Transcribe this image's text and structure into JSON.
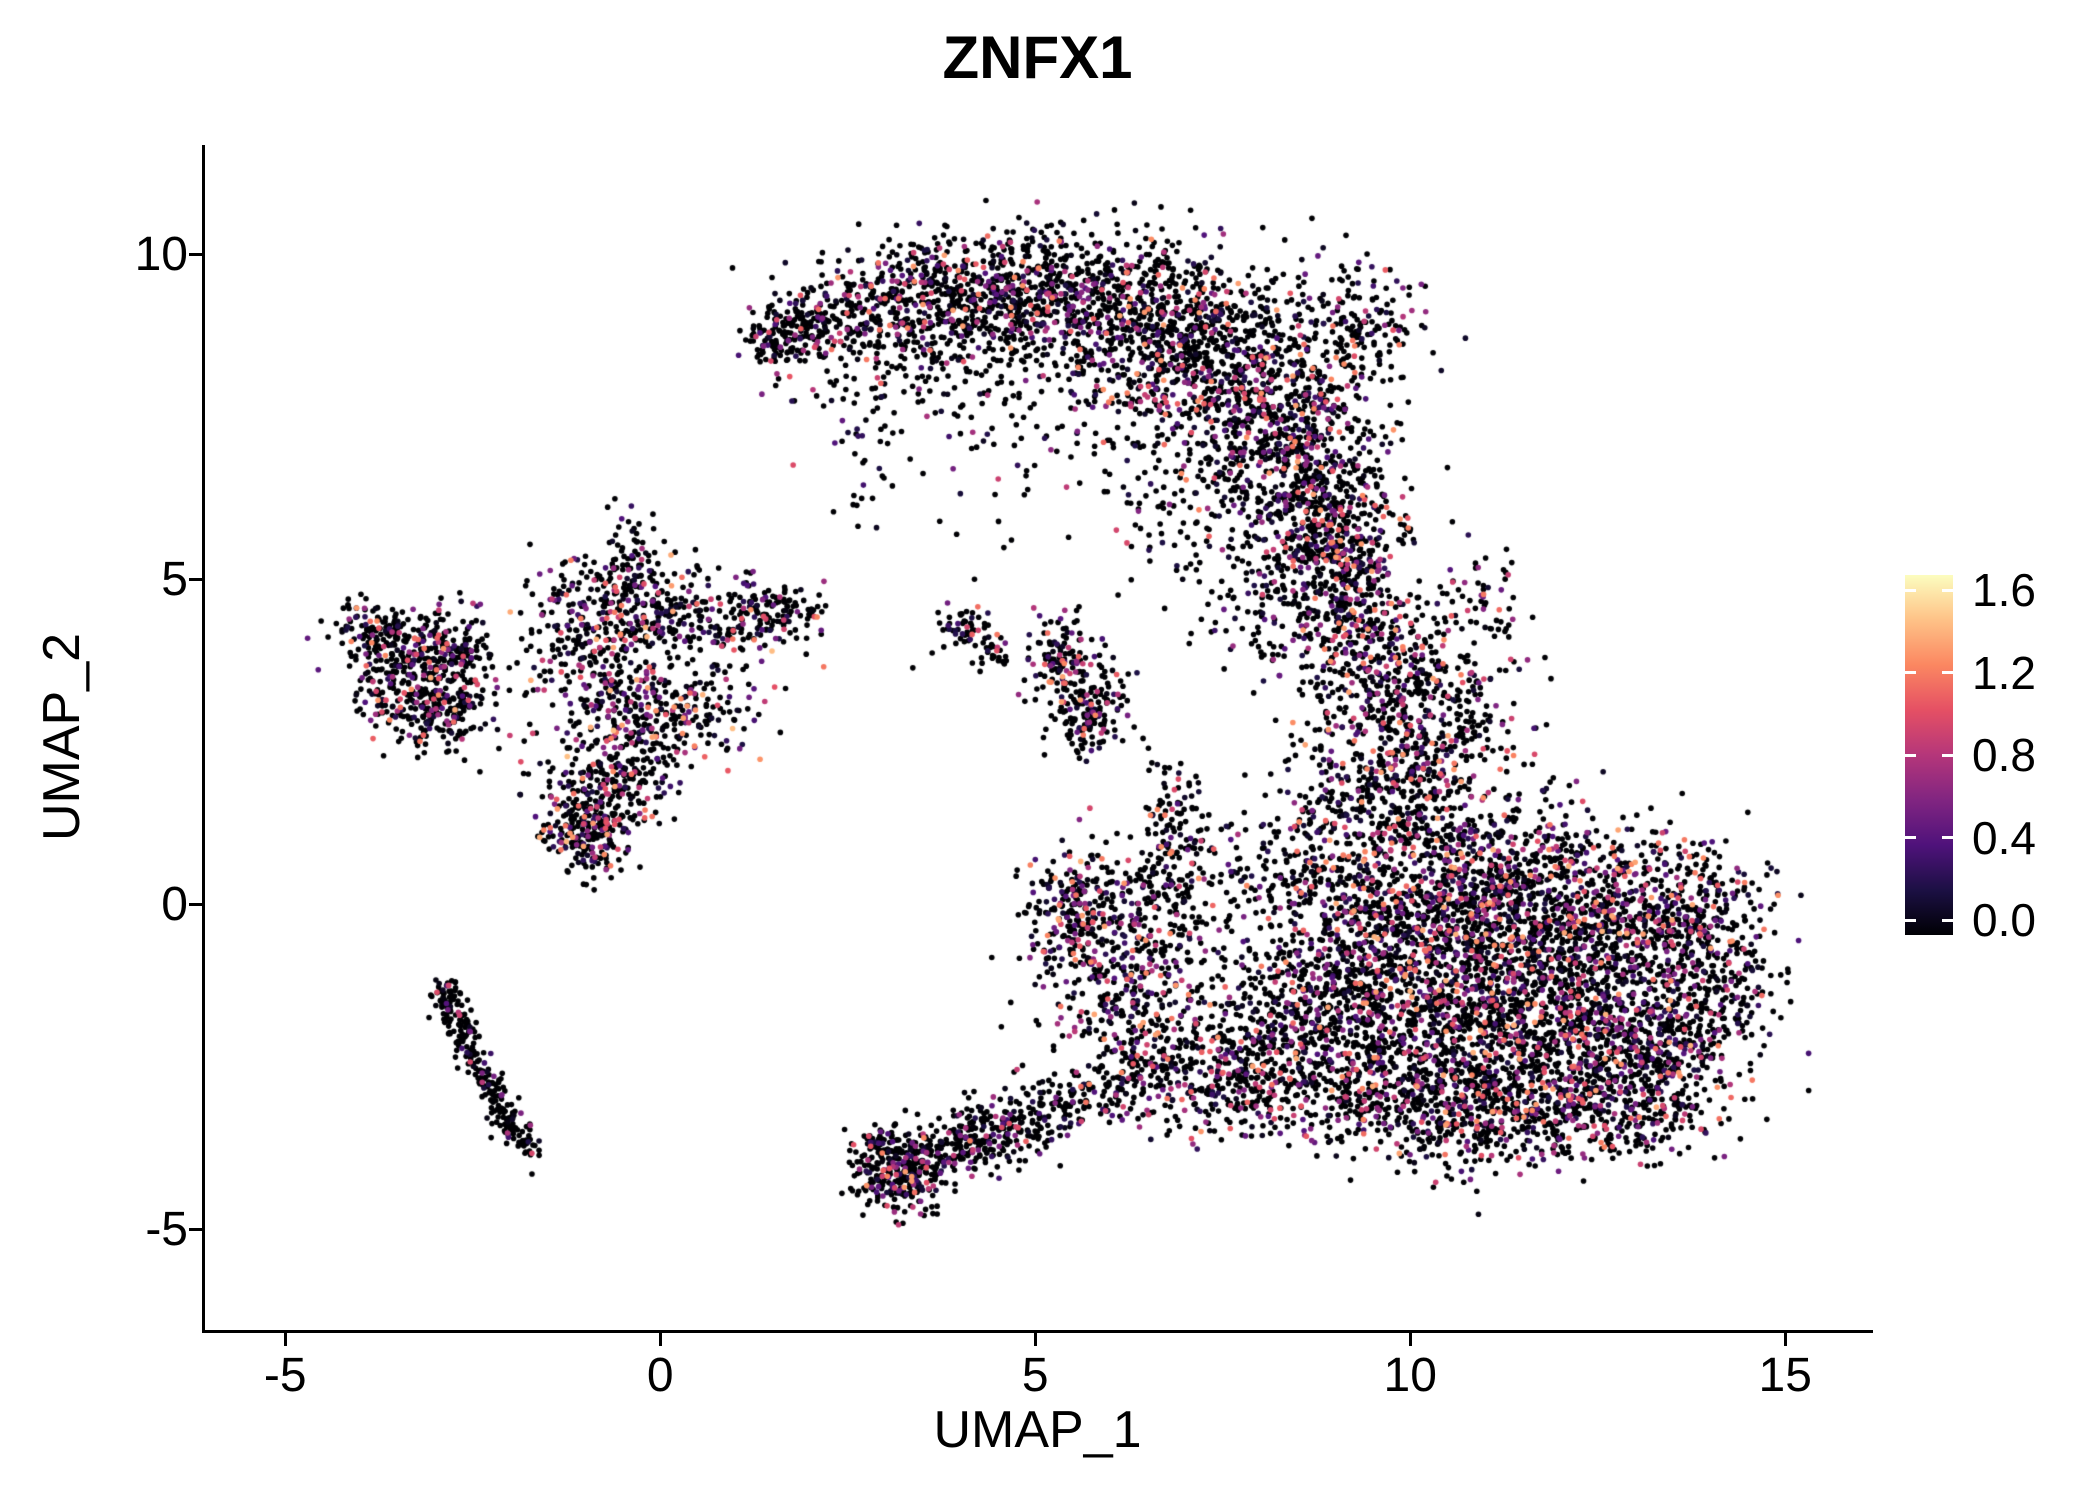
{
  "chart_data": {
    "type": "scatter",
    "title": "ZNFX1",
    "xlabel": "UMAP_1",
    "ylabel": "UMAP_2",
    "xlim": [
      -6.07,
      16.13
    ],
    "ylim": [
      -6.54,
      11.69
    ],
    "x_ticks": [
      -5,
      0,
      5,
      10,
      15
    ],
    "y_ticks": [
      -5,
      0,
      5,
      10
    ],
    "grid": false,
    "legend": {
      "position": "right",
      "ticks": [
        "0.0",
        "0.4",
        "0.8",
        "1.2",
        "1.6"
      ],
      "tick_values": [
        0,
        0.4,
        0.8,
        1.2,
        1.6
      ],
      "vmin": 0,
      "vmax": 1.6,
      "colormap": "magma",
      "stops": [
        "#000004",
        "#1c1044",
        "#4f127b",
        "#812581",
        "#b5367a",
        "#e55064",
        "#fb8761",
        "#fec287",
        "#fcfdbf"
      ]
    },
    "clusters": [
      {
        "t": "g",
        "x": 1.6,
        "y": 8.75,
        "sx": 0.25,
        "sy": 0.25,
        "n": 110,
        "cf": 0.3,
        "vm": 1.2
      },
      {
        "t": "g",
        "x": 2.3,
        "y": 9.0,
        "sx": 0.45,
        "sy": 0.4,
        "n": 190,
        "cf": 0.3,
        "vm": 1.2
      },
      {
        "t": "g",
        "x": 3.3,
        "y": 9.35,
        "sx": 0.55,
        "sy": 0.45,
        "n": 260,
        "cf": 0.32,
        "vm": 1.3
      },
      {
        "t": "g",
        "x": 4.3,
        "y": 9.5,
        "sx": 0.55,
        "sy": 0.45,
        "n": 280,
        "cf": 0.32,
        "vm": 1.3
      },
      {
        "t": "g",
        "x": 5.3,
        "y": 9.4,
        "sx": 0.6,
        "sy": 0.55,
        "n": 330,
        "cf": 0.32,
        "vm": 1.3
      },
      {
        "t": "g",
        "x": 6.3,
        "y": 9.1,
        "sx": 0.7,
        "sy": 0.6,
        "n": 400,
        "cf": 0.33,
        "vm": 1.3
      },
      {
        "t": "g",
        "x": 7.2,
        "y": 8.6,
        "sx": 0.7,
        "sy": 0.7,
        "n": 470,
        "cf": 0.33,
        "vm": 1.3
      },
      {
        "t": "g",
        "x": 8.0,
        "y": 7.8,
        "sx": 0.65,
        "sy": 0.75,
        "n": 470,
        "cf": 0.33,
        "vm": 1.3
      },
      {
        "t": "g",
        "x": 8.6,
        "y": 6.8,
        "sx": 0.55,
        "sy": 0.7,
        "n": 380,
        "cf": 0.33,
        "vm": 1.3
      },
      {
        "t": "g",
        "x": 8.9,
        "y": 5.9,
        "sx": 0.45,
        "sy": 0.55,
        "n": 230,
        "cf": 0.3,
        "vm": 1.3
      },
      {
        "t": "g",
        "x": 9.35,
        "y": 8.9,
        "sx": 0.45,
        "sy": 0.55,
        "n": 170,
        "cf": 0.3,
        "vm": 1.2
      },
      {
        "t": "g",
        "x": 5.8,
        "y": 7.9,
        "sx": 1.3,
        "sy": 0.7,
        "n": 120,
        "cf": 0.25,
        "vm": 1.2
      },
      {
        "t": "g",
        "x": 3.7,
        "y": 8.4,
        "sx": 0.8,
        "sy": 0.5,
        "n": 110,
        "cf": 0.25,
        "vm": 1.2
      },
      {
        "t": "g",
        "x": 2.6,
        "y": 7.9,
        "sx": 0.5,
        "sy": 0.5,
        "n": 55,
        "cf": 0.25,
        "vm": 1.2
      },
      {
        "t": "g",
        "x": 4.6,
        "y": 6.9,
        "sx": 0.9,
        "sy": 0.6,
        "n": 45,
        "cf": 0.2,
        "vm": 1.0
      },
      {
        "t": "g",
        "x": 7.0,
        "y": 6.3,
        "sx": 0.7,
        "sy": 0.6,
        "n": 85,
        "cf": 0.3,
        "vm": 1.2
      },
      {
        "t": "g",
        "x": 8.2,
        "y": 5.0,
        "sx": 0.4,
        "sy": 0.5,
        "n": 55,
        "cf": 0.3,
        "vm": 1.2
      },
      {
        "t": "g",
        "x": -3.8,
        "y": 4.25,
        "sx": 0.3,
        "sy": 0.25,
        "n": 110,
        "cf": 0.35,
        "vm": 1.35
      },
      {
        "t": "g",
        "x": -3.2,
        "y": 3.9,
        "sx": 0.4,
        "sy": 0.3,
        "n": 160,
        "cf": 0.35,
        "vm": 1.35
      },
      {
        "t": "g",
        "x": -3.4,
        "y": 3.2,
        "sx": 0.35,
        "sy": 0.35,
        "n": 170,
        "cf": 0.35,
        "vm": 1.35
      },
      {
        "t": "g",
        "x": -2.8,
        "y": 3.0,
        "sx": 0.3,
        "sy": 0.35,
        "n": 140,
        "cf": 0.35,
        "vm": 1.35
      },
      {
        "t": "g",
        "x": -2.6,
        "y": 3.9,
        "sx": 0.25,
        "sy": 0.3,
        "n": 80,
        "cf": 0.3,
        "vm": 1.2
      },
      {
        "t": "g",
        "x": -0.9,
        "y": 4.6,
        "sx": 0.5,
        "sy": 0.4,
        "n": 150,
        "cf": 0.35,
        "vm": 1.4
      },
      {
        "t": "g",
        "x": 0.1,
        "y": 4.5,
        "sx": 0.6,
        "sy": 0.4,
        "n": 180,
        "cf": 0.35,
        "vm": 1.4
      },
      {
        "t": "g",
        "x": 1.1,
        "y": 4.4,
        "sx": 0.5,
        "sy": 0.3,
        "n": 130,
        "cf": 0.35,
        "vm": 1.4
      },
      {
        "t": "g",
        "x": -0.4,
        "y": 5.3,
        "sx": 0.2,
        "sy": 0.45,
        "n": 70,
        "cf": 0.3,
        "vm": 1.2
      },
      {
        "t": "g",
        "x": -0.7,
        "y": 3.6,
        "sx": 0.5,
        "sy": 0.4,
        "n": 160,
        "cf": 0.35,
        "vm": 1.4
      },
      {
        "t": "g",
        "x": 0.4,
        "y": 3.0,
        "sx": 0.5,
        "sy": 0.4,
        "n": 150,
        "cf": 0.38,
        "vm": 1.4
      },
      {
        "t": "g",
        "x": -0.3,
        "y": 2.6,
        "sx": 0.4,
        "sy": 0.4,
        "n": 140,
        "cf": 0.38,
        "vm": 1.4
      },
      {
        "t": "g",
        "x": -0.6,
        "y": 1.8,
        "sx": 0.4,
        "sy": 0.4,
        "n": 160,
        "cf": 0.38,
        "vm": 1.4
      },
      {
        "t": "g",
        "x": -0.95,
        "y": 1.15,
        "sx": 0.3,
        "sy": 0.35,
        "n": 220,
        "cf": 0.4,
        "vm": 1.4
      },
      {
        "t": "g",
        "x": -1.4,
        "y": 2.7,
        "sx": 0.4,
        "sy": 0.8,
        "n": 60,
        "cf": 0.3,
        "vm": 1.2
      },
      {
        "t": "g",
        "x": 1.6,
        "y": 4.55,
        "sx": 0.3,
        "sy": 0.2,
        "n": 60,
        "cf": 0.3,
        "vm": 1.3
      },
      {
        "t": "l",
        "x": -2.9,
        "y": -1.3,
        "x2": -2.5,
        "y2": -2.3,
        "w": 0.12,
        "n": 90,
        "cf": 0.15,
        "vm": 1.0
      },
      {
        "t": "l",
        "x": -2.5,
        "y": -2.3,
        "x2": -1.75,
        "y2": -3.85,
        "w": 0.12,
        "n": 150,
        "cf": 0.15,
        "vm": 1.0
      },
      {
        "t": "g",
        "x": -2.85,
        "y": -1.35,
        "sx": 0.1,
        "sy": 0.12,
        "n": 30,
        "cf": 0.15,
        "vm": 1.0
      },
      {
        "t": "g",
        "x": 4.1,
        "y": 4.25,
        "sx": 0.2,
        "sy": 0.2,
        "n": 55,
        "cf": 0.3,
        "vm": 1.2
      },
      {
        "t": "g",
        "x": 4.35,
        "y": 3.9,
        "sx": 0.15,
        "sy": 0.15,
        "n": 25,
        "cf": 0.3,
        "vm": 1.0
      },
      {
        "t": "g",
        "x": 5.35,
        "y": 3.75,
        "sx": 0.25,
        "sy": 0.4,
        "n": 130,
        "cf": 0.35,
        "vm": 1.3
      },
      {
        "t": "g",
        "x": 5.75,
        "y": 2.95,
        "sx": 0.25,
        "sy": 0.35,
        "n": 150,
        "cf": 0.35,
        "vm": 1.3
      },
      {
        "t": "g",
        "x": 9.2,
        "y": 5.3,
        "sx": 0.45,
        "sy": 0.5,
        "n": 190,
        "cf": 0.35,
        "vm": 1.3
      },
      {
        "t": "g",
        "x": 9.0,
        "y": 4.4,
        "sx": 0.5,
        "sy": 0.5,
        "n": 220,
        "cf": 0.35,
        "vm": 1.3
      },
      {
        "t": "g",
        "x": 9.6,
        "y": 3.6,
        "sx": 0.55,
        "sy": 0.55,
        "n": 250,
        "cf": 0.35,
        "vm": 1.3
      },
      {
        "t": "g",
        "x": 9.9,
        "y": 2.6,
        "sx": 0.6,
        "sy": 0.5,
        "n": 270,
        "cf": 0.35,
        "vm": 1.3
      },
      {
        "t": "g",
        "x": 10.6,
        "y": 3.3,
        "sx": 0.6,
        "sy": 0.7,
        "n": 110,
        "cf": 0.3,
        "vm": 1.2
      },
      {
        "t": "g",
        "x": 10.9,
        "y": 4.6,
        "sx": 0.4,
        "sy": 0.5,
        "n": 55,
        "cf": 0.25,
        "vm": 1.2
      },
      {
        "t": "g",
        "x": 9.6,
        "y": 1.6,
        "sx": 0.7,
        "sy": 0.4,
        "n": 240,
        "cf": 0.35,
        "vm": 1.3
      },
      {
        "t": "g",
        "x": 7.8,
        "y": 4.6,
        "sx": 0.4,
        "sy": 0.5,
        "n": 40,
        "cf": 0.3,
        "vm": 1.2
      },
      {
        "t": "g",
        "x": 10.4,
        "y": 0.6,
        "sx": 0.8,
        "sy": 0.6,
        "n": 380,
        "cf": 0.38,
        "vm": 1.35
      },
      {
        "t": "g",
        "x": 11.6,
        "y": 0.3,
        "sx": 0.9,
        "sy": 0.7,
        "n": 450,
        "cf": 0.38,
        "vm": 1.35
      },
      {
        "t": "g",
        "x": 12.8,
        "y": 0.0,
        "sx": 0.8,
        "sy": 0.6,
        "n": 340,
        "cf": 0.38,
        "vm": 1.35
      },
      {
        "t": "g",
        "x": 13.8,
        "y": -0.3,
        "sx": 0.5,
        "sy": 0.6,
        "n": 220,
        "cf": 0.35,
        "vm": 1.3
      },
      {
        "t": "g",
        "x": 10.6,
        "y": -0.7,
        "sx": 0.9,
        "sy": 0.6,
        "n": 420,
        "cf": 0.38,
        "vm": 1.35
      },
      {
        "t": "g",
        "x": 11.8,
        "y": -1.0,
        "sx": 0.9,
        "sy": 0.7,
        "n": 450,
        "cf": 0.38,
        "vm": 1.35
      },
      {
        "t": "g",
        "x": 12.9,
        "y": -1.4,
        "sx": 0.8,
        "sy": 0.6,
        "n": 340,
        "cf": 0.38,
        "vm": 1.35
      },
      {
        "t": "g",
        "x": 10.2,
        "y": -1.9,
        "sx": 0.8,
        "sy": 0.6,
        "n": 380,
        "cf": 0.38,
        "vm": 1.35
      },
      {
        "t": "g",
        "x": 11.4,
        "y": -2.2,
        "sx": 0.9,
        "sy": 0.6,
        "n": 420,
        "cf": 0.38,
        "vm": 1.35
      },
      {
        "t": "g",
        "x": 12.6,
        "y": -2.6,
        "sx": 0.8,
        "sy": 0.5,
        "n": 300,
        "cf": 0.38,
        "vm": 1.35
      },
      {
        "t": "g",
        "x": 13.6,
        "y": -2.1,
        "sx": 0.5,
        "sy": 0.5,
        "n": 170,
        "cf": 0.35,
        "vm": 1.3
      },
      {
        "t": "g",
        "x": 9.4,
        "y": -0.4,
        "sx": 0.6,
        "sy": 0.7,
        "n": 270,
        "cf": 0.38,
        "vm": 1.35
      },
      {
        "t": "g",
        "x": 9.0,
        "y": -1.6,
        "sx": 0.6,
        "sy": 0.7,
        "n": 230,
        "cf": 0.35,
        "vm": 1.3
      },
      {
        "t": "g",
        "x": 9.7,
        "y": -2.9,
        "sx": 0.7,
        "sy": 0.5,
        "n": 270,
        "cf": 0.35,
        "vm": 1.3
      },
      {
        "t": "g",
        "x": 10.8,
        "y": -3.3,
        "sx": 0.7,
        "sy": 0.4,
        "n": 230,
        "cf": 0.35,
        "vm": 1.3
      },
      {
        "t": "g",
        "x": 12.0,
        "y": -3.3,
        "sx": 0.6,
        "sy": 0.4,
        "n": 170,
        "cf": 0.35,
        "vm": 1.3
      },
      {
        "t": "g",
        "x": 13.2,
        "y": -3.3,
        "sx": 0.5,
        "sy": 0.35,
        "n": 120,
        "cf": 0.3,
        "vm": 1.2
      },
      {
        "t": "g",
        "x": 14.2,
        "y": -1.2,
        "sx": 0.3,
        "sy": 0.5,
        "n": 80,
        "cf": 0.3,
        "vm": 1.2
      },
      {
        "t": "g",
        "x": 8.6,
        "y": 0.6,
        "sx": 0.5,
        "sy": 0.6,
        "n": 150,
        "cf": 0.35,
        "vm": 1.3
      },
      {
        "t": "g",
        "x": 5.55,
        "y": -0.15,
        "sx": 0.35,
        "sy": 0.55,
        "n": 280,
        "cf": 0.4,
        "vm": 1.4
      },
      {
        "t": "g",
        "x": 6.2,
        "y": -1.3,
        "sx": 0.6,
        "sy": 0.6,
        "n": 210,
        "cf": 0.35,
        "vm": 1.3
      },
      {
        "t": "g",
        "x": 7.0,
        "y": -2.2,
        "sx": 0.7,
        "sy": 0.6,
        "n": 280,
        "cf": 0.35,
        "vm": 1.3
      },
      {
        "t": "g",
        "x": 8.0,
        "y": -2.8,
        "sx": 0.6,
        "sy": 0.4,
        "n": 240,
        "cf": 0.35,
        "vm": 1.3
      },
      {
        "t": "g",
        "x": 6.8,
        "y": 1.0,
        "sx": 0.25,
        "sy": 0.6,
        "n": 130,
        "cf": 0.35,
        "vm": 1.3
      },
      {
        "t": "g",
        "x": 6.6,
        "y": -0.1,
        "sx": 0.3,
        "sy": 0.4,
        "n": 90,
        "cf": 0.3,
        "vm": 1.2
      },
      {
        "t": "g",
        "x": 7.4,
        "y": 0.3,
        "sx": 0.5,
        "sy": 0.7,
        "n": 100,
        "cf": 0.25,
        "vm": 1.2
      },
      {
        "t": "g",
        "x": 8.4,
        "y": -1.6,
        "sx": 0.5,
        "sy": 0.6,
        "n": 190,
        "cf": 0.35,
        "vm": 1.3
      },
      {
        "t": "g",
        "x": 3.2,
        "y": -4.15,
        "sx": 0.3,
        "sy": 0.28,
        "n": 260,
        "cf": 0.35,
        "vm": 1.3
      },
      {
        "t": "l",
        "x": 3.4,
        "y": -3.95,
        "x2": 5.6,
        "y2": -2.95,
        "w": 0.22,
        "n": 250,
        "cf": 0.3,
        "vm": 1.2
      },
      {
        "t": "g",
        "x": 4.4,
        "y": -3.55,
        "sx": 0.5,
        "sy": 0.3,
        "n": 110,
        "cf": 0.3,
        "vm": 1.2
      },
      {
        "t": "g",
        "x": 2.95,
        "y": -3.7,
        "sx": 0.15,
        "sy": 0.2,
        "n": 55,
        "cf": 0.3,
        "vm": 1.2
      },
      {
        "t": "l",
        "x": 5.6,
        "y": -2.95,
        "x2": 6.6,
        "y2": -2.6,
        "w": 0.3,
        "n": 110,
        "cf": 0.3,
        "vm": 1.2
      },
      {
        "t": "g",
        "x": 2.7,
        "y": 6.2,
        "sx": 0.3,
        "sy": 0.4,
        "n": 10,
        "cf": 0.2,
        "vm": 1.0
      },
      {
        "t": "g",
        "x": 6.5,
        "y": 5.2,
        "sx": 0.5,
        "sy": 0.5,
        "n": 12,
        "cf": 0.25,
        "vm": 1.2
      }
    ]
  }
}
